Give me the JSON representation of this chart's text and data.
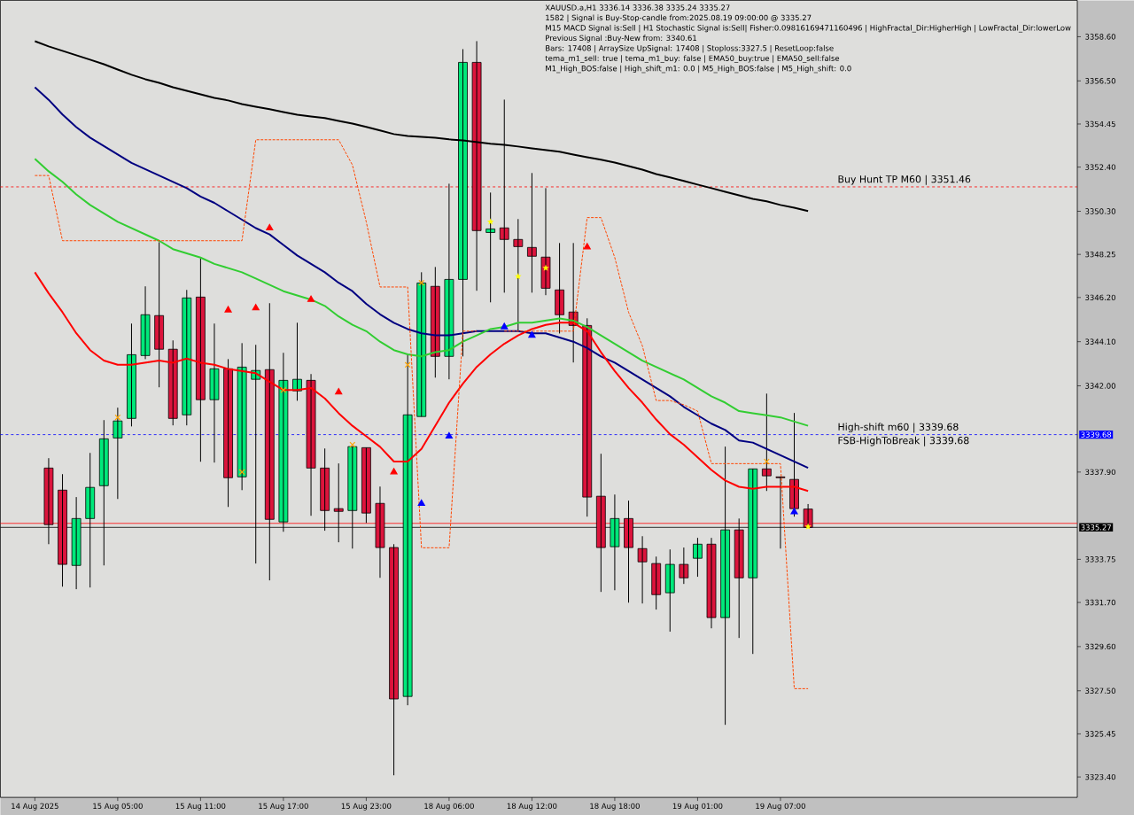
{
  "chart_data": {
    "type": "candlestick",
    "title": "XAUUSD.a,H1  3336.14 3336.38 3335.24 3335.27",
    "annotations": [
      "1582 | Signal is Buy-Stop-candle from:2025.08.19 09:00:00 @ 3335.27",
      "M15 MACD Signal is:Sell | H1 Stochastic Signal is:Sell| Fisher:0.09816169471160496 | HighFractal_Dir:HigherHigh | LowFractal_Dir:lowerLow",
      "Previous Signal :Buy-New from: 3340.61",
      "Bars: 17408 | ArraySize UpSignal: 17408 | Stoploss:3327.5 | ResetLoop:false",
      "tema_m1_sell: true | tema_m1_buy: false | EMA50_buy:true | EMA50_sell:false",
      "M1_High_BOS:false | High_shift_m1: 0.0 | M5_High_BOS:false | M5_High_shift: 0.0",
      {
        "text": "Buy Hunt TP M60 | 3351.46",
        "y": 3351.46
      },
      {
        "text": "High-shift m60 | 3339.68",
        "y": 3339.68
      },
      {
        "text": "FSB-HighToBreak | 3339.68",
        "y": 3339.68
      }
    ],
    "categories": [
      "14 Aug 2025",
      null,
      null,
      null,
      null,
      null,
      "15 Aug 05:00",
      null,
      null,
      null,
      null,
      null,
      "15 Aug 11:00",
      null,
      null,
      null,
      null,
      null,
      "15 Aug 17:00",
      null,
      null,
      null,
      null,
      null,
      "15 Aug 23:00",
      null,
      null,
      null,
      null,
      null,
      "18 Aug 06:00",
      null,
      null,
      null,
      null,
      null,
      "18 Aug 12:00",
      null,
      null,
      null,
      null,
      null,
      "18 Aug 18:00",
      null,
      null,
      null,
      null,
      null,
      "19 Aug 01:00",
      null,
      null,
      null,
      null,
      null,
      "19 Aug 07:00",
      null,
      null
    ],
    "ohlc": [
      null,
      [
        3338.09,
        3338.56,
        3334.47,
        3335.4
      ],
      [
        3337.04,
        3337.8,
        3332.45,
        3333.51
      ],
      [
        3333.46,
        3336.71,
        3332.33,
        3335.69
      ],
      [
        3335.69,
        3338.81,
        3332.41,
        3337.17
      ],
      [
        3337.25,
        3340.37,
        3333.46,
        3339.48
      ],
      [
        3339.52,
        3340.96,
        3336.62,
        3340.33
      ],
      [
        3340.45,
        3344.96,
        3340.07,
        3343.48
      ],
      [
        3343.44,
        3346.73,
        3343.27,
        3345.38
      ],
      [
        3345.34,
        3348.83,
        3341.93,
        3343.74
      ],
      [
        3343.74,
        3344.16,
        3340.12,
        3340.45
      ],
      [
        3340.62,
        3346.56,
        3340.12,
        3346.18
      ],
      [
        3346.22,
        3348.07,
        3338.39,
        3341.34
      ],
      [
        3341.34,
        3344.96,
        3338.35,
        3342.81
      ],
      [
        3342.81,
        3343.27,
        3336.24,
        3337.63
      ],
      [
        3337.67,
        3344.03,
        3337.04,
        3342.89
      ],
      [
        3342.31,
        3343.95,
        3333.55,
        3342.73
      ],
      [
        3342.77,
        3345.93,
        3332.75,
        3335.65
      ],
      [
        3335.53,
        3343.57,
        3335.06,
        3342.26
      ],
      [
        3341.76,
        3345.0,
        3341.29,
        3342.31
      ],
      [
        3342.26,
        3342.56,
        3335.82,
        3338.09
      ],
      [
        3338.09,
        3339.02,
        3335.11,
        3336.07
      ],
      [
        3336.16,
        3338.31,
        3334.56,
        3336.03
      ],
      [
        3336.07,
        3339.11,
        3334.26,
        3339.11
      ],
      [
        3339.06,
        3339.06,
        3335.48,
        3335.95
      ],
      [
        3336.41,
        3337.21,
        3332.87,
        3334.31
      ],
      [
        3334.31,
        3334.47,
        3323.48,
        3327.11
      ],
      [
        3327.23,
        3343.48,
        3326.81,
        3340.62
      ],
      [
        3340.54,
        3347.4,
        3340.54,
        3346.89
      ],
      [
        3346.73,
        3347.65,
        3342.39,
        3343.4
      ],
      [
        3343.4,
        3351.61,
        3342.31,
        3347.06
      ],
      [
        3347.06,
        3358.01,
        3343.4,
        3357.38
      ],
      [
        3357.38,
        3358.39,
        3346.52,
        3349.38
      ],
      [
        3349.29,
        3351.19,
        3345.97,
        3349.46
      ],
      [
        3349.51,
        3355.61,
        3346.43,
        3348.96
      ],
      [
        3348.96,
        3349.93,
        3344.62,
        3348.62
      ],
      [
        3348.58,
        3352.12,
        3346.43,
        3348.16
      ],
      [
        3348.12,
        3351.4,
        3346.31,
        3346.64
      ],
      [
        3346.56,
        3348.79,
        3344.49,
        3345.38
      ],
      [
        3345.51,
        3348.79,
        3343.11,
        3344.87
      ],
      [
        3344.87,
        3345.21,
        3335.78,
        3336.71
      ],
      [
        3336.75,
        3338.77,
        3332.2,
        3334.31
      ],
      [
        3334.35,
        3336.83,
        3332.28,
        3335.69
      ],
      [
        3335.69,
        3336.54,
        3331.69,
        3334.31
      ],
      [
        3334.26,
        3334.85,
        3331.65,
        3333.63
      ],
      [
        3333.55,
        3333.88,
        3331.36,
        3332.07
      ],
      [
        3332.16,
        3334.22,
        3330.31,
        3333.51
      ],
      [
        3333.51,
        3334.31,
        3332.58,
        3332.87
      ],
      [
        3333.8,
        3334.77,
        3332.92,
        3334.47
      ],
      [
        3334.47,
        3334.77,
        3330.47,
        3330.98
      ],
      [
        3330.98,
        3339.11,
        3325.88,
        3335.15
      ],
      [
        3335.15,
        3335.69,
        3330.01,
        3332.87
      ],
      [
        3332.87,
        3338.05,
        3329.25,
        3338.05
      ],
      [
        3338.05,
        3341.63,
        3337.0,
        3337.72
      ],
      [
        3337.67,
        3337.67,
        3334.26,
        3337.63
      ],
      [
        3337.55,
        3340.71,
        3335.78,
        3336.16
      ],
      [
        3336.14,
        3336.38,
        3335.24,
        3335.27
      ]
    ],
    "colors": [
      null,
      "#dc143c",
      "#dc143c",
      "#00e87a",
      "#00e87a",
      "#00e87a",
      "#00e87a",
      "#00e87a",
      "#00e87a",
      "#dc143c",
      "#dc143c",
      "#00e87a",
      "#dc143c",
      "#00e87a",
      "#dc143c",
      "#00e87a",
      "#00e87a",
      "#dc143c",
      "#00e87a",
      "#00e87a",
      "#dc143c",
      "#dc143c",
      "#dc143c",
      "#00e87a",
      "#dc143c",
      "#dc143c",
      "#dc143c",
      "#00e87a",
      "#00e87a",
      "#dc143c",
      "#00e87a",
      "#00e87a",
      "#dc143c",
      "#00e87a",
      "#dc143c",
      "#dc143c",
      "#dc143c",
      "#dc143c",
      "#dc143c",
      "#dc143c",
      "#dc143c",
      "#dc143c",
      "#00e87a",
      "#dc143c",
      "#dc143c",
      "#dc143c",
      "#00e87a",
      "#dc143c",
      "#00e87a",
      "#dc143c",
      "#00e87a",
      "#dc143c",
      "#00e87a",
      "#dc143c",
      "#dc143c",
      "#dc143c",
      "#dc143c"
    ],
    "ylim": [
      3322.43,
      3360.33
    ],
    "yticks": [
      {
        "value": 3358.6,
        "label": "3358.60"
      },
      {
        "value": 3356.5,
        "label": "3356.50"
      },
      {
        "value": 3354.45,
        "label": "3354.45"
      },
      {
        "value": 3352.4,
        "label": "3352.40"
      },
      {
        "value": 3350.3,
        "label": "3350.30"
      },
      {
        "value": 3348.25,
        "label": "3348.25"
      },
      {
        "value": 3346.2,
        "label": "3346.20"
      },
      {
        "value": 3344.1,
        "label": "3344.10"
      },
      {
        "value": 3342.0,
        "label": "3342.00"
      },
      {
        "value": 3337.9,
        "label": "3337.90"
      },
      {
        "value": 3333.75,
        "label": "3333.75"
      },
      {
        "value": 3331.7,
        "label": "3331.70"
      },
      {
        "value": 3329.6,
        "label": "3329.60"
      },
      {
        "value": 3327.5,
        "label": "3327.50"
      },
      {
        "value": 3325.45,
        "label": "3325.45"
      },
      {
        "value": 3323.4,
        "label": "3323.40"
      }
    ],
    "series": [
      {
        "type": "line",
        "color": "#000000",
        "values": [
          3358.39,
          3358.14,
          3357.93,
          3357.72,
          3357.51,
          3357.29,
          3357.04,
          3356.79,
          3356.58,
          3356.41,
          3356.2,
          3356.03,
          3355.86,
          3355.69,
          3355.57,
          3355.4,
          3355.27,
          3355.15,
          3355.02,
          3354.89,
          3354.81,
          3354.73,
          3354.6,
          3354.47,
          3354.31,
          3354.14,
          3353.97,
          3353.88,
          3353.84,
          3353.8,
          3353.72,
          3353.67,
          3353.59,
          3353.51,
          3353.46,
          3353.38,
          3353.29,
          3353.21,
          3353.13,
          3353.0,
          3352.87,
          3352.75,
          3352.62,
          3352.45,
          3352.28,
          3352.07,
          3351.91,
          3351.74,
          3351.57,
          3351.4,
          3351.23,
          3351.06,
          3350.89,
          3350.77,
          3350.6,
          3350.47,
          3350.31
        ]
      },
      {
        "type": "line",
        "color": "#000080",
        "values": [
          3356.2,
          3355.6,
          3354.9,
          3354.3,
          3353.8,
          3353.4,
          3353.0,
          3352.6,
          3352.3,
          3352.0,
          3351.7,
          3351.4,
          3351.0,
          3350.7,
          3350.3,
          3349.9,
          3349.5,
          3349.2,
          3348.7,
          3348.2,
          3347.8,
          3347.4,
          3346.9,
          3346.5,
          3345.9,
          3345.4,
          3345.0,
          3344.7,
          3344.5,
          3344.4,
          3344.4,
          3344.5,
          3344.6,
          3344.6,
          3344.6,
          3344.6,
          3344.5,
          3344.5,
          3344.3,
          3344.1,
          3343.8,
          3343.4,
          3343.1,
          3342.7,
          3342.3,
          3341.9,
          3341.5,
          3341.0,
          3340.6,
          3340.2,
          3339.9,
          3339.4,
          3339.3,
          3339.0,
          3338.7,
          3338.4,
          3338.1
        ]
      },
      {
        "type": "line",
        "color": "#32cd32",
        "values": [
          3352.8,
          3352.2,
          3351.7,
          3351.1,
          3350.6,
          3350.2,
          3349.8,
          3349.5,
          3349.2,
          3348.9,
          3348.5,
          3348.3,
          3348.1,
          3347.8,
          3347.6,
          3347.4,
          3347.1,
          3346.8,
          3346.5,
          3346.3,
          3346.1,
          3345.8,
          3345.3,
          3344.9,
          3344.6,
          3344.1,
          3343.7,
          3343.5,
          3343.4,
          3343.6,
          3343.7,
          3344.1,
          3344.4,
          3344.7,
          3344.8,
          3345.0,
          3345.0,
          3345.1,
          3345.2,
          3345.1,
          3344.8,
          3344.4,
          3344.0,
          3343.6,
          3343.2,
          3342.9,
          3342.6,
          3342.3,
          3341.9,
          3341.5,
          3341.2,
          3340.8,
          3340.7,
          3340.6,
          3340.5,
          3340.3,
          3340.1
        ]
      },
      {
        "type": "line",
        "color": "#ff0000",
        "values": [
          3347.4,
          3346.4,
          3345.5,
          3344.5,
          3343.7,
          3343.2,
          3343.0,
          3343.0,
          3343.1,
          3343.2,
          3343.1,
          3343.3,
          3343.1,
          3343.0,
          3342.8,
          3342.7,
          3342.6,
          3342.2,
          3341.8,
          3341.8,
          3341.9,
          3341.4,
          3340.7,
          3340.1,
          3339.6,
          3339.1,
          3338.4,
          3338.4,
          3339.0,
          3340.1,
          3341.2,
          3342.1,
          3342.9,
          3343.5,
          3344.0,
          3344.4,
          3344.7,
          3344.9,
          3345.0,
          3345.0,
          3344.6,
          3343.6,
          3342.7,
          3341.9,
          3341.2,
          3340.4,
          3339.7,
          3339.2,
          3338.6,
          3338.0,
          3337.5,
          3337.2,
          3337.1,
          3337.2,
          3337.2,
          3337.2,
          3337.0
        ]
      },
      {
        "type": "line",
        "color": "#ff4500",
        "line_style": "dashed",
        "values": [
          3352.0,
          3352.0,
          3348.9,
          3348.9,
          3348.9,
          3348.9,
          3348.9,
          3348.9,
          3348.9,
          3348.9,
          3348.9,
          3348.9,
          3348.9,
          3348.9,
          3348.9,
          3348.9,
          3353.7,
          3353.7,
          3353.7,
          3353.7,
          3353.7,
          3353.7,
          3353.7,
          3352.5,
          3349.8,
          3346.7,
          3346.7,
          3346.7,
          3334.3,
          3334.3,
          3334.3,
          3344.6,
          3344.6,
          null,
          3344.6,
          3344.6,
          3344.6,
          3344.6,
          3344.6,
          3344.6,
          3350.0,
          3350.0,
          3348.1,
          3345.5,
          3343.9,
          3341.3,
          3341.3,
          3341.1,
          3340.8,
          3338.3,
          3338.3,
          3338.3,
          3338.3,
          3338.3,
          3338.3,
          3327.6,
          3327.6
        ]
      },
      {
        "type": "scatter",
        "color": "#ff0000",
        "marker": "triangle",
        "values": [
          null,
          null,
          null,
          null,
          null,
          null,
          null,
          null,
          null,
          null,
          null,
          null,
          null,
          null,
          3345.6,
          null,
          3345.7,
          3349.5,
          null,
          null,
          3346.1,
          null,
          3341.7,
          null,
          null,
          null,
          3337.9,
          null,
          null,
          null,
          null,
          null,
          null,
          null,
          null,
          null,
          null,
          null,
          null,
          null,
          3348.6,
          null,
          null,
          null,
          null,
          null,
          null,
          null,
          null,
          null,
          null,
          null,
          null,
          null,
          null,
          null,
          null
        ]
      },
      {
        "type": "scatter",
        "color": "#0000ff",
        "marker": "triangle",
        "values": [
          null,
          null,
          null,
          null,
          null,
          null,
          null,
          null,
          null,
          null,
          null,
          null,
          null,
          null,
          null,
          null,
          null,
          null,
          null,
          null,
          null,
          null,
          null,
          null,
          null,
          null,
          null,
          null,
          3336.4,
          null,
          3339.6,
          null,
          null,
          null,
          3344.8,
          null,
          3344.4,
          null,
          null,
          null,
          null,
          null,
          null,
          null,
          null,
          null,
          null,
          null,
          null,
          null,
          null,
          null,
          null,
          null,
          null,
          3336.0,
          null
        ]
      },
      {
        "type": "scatter",
        "color": "#ffa500",
        "marker": "cross",
        "values": [
          null,
          null,
          null,
          null,
          null,
          null,
          3340.5,
          null,
          null,
          null,
          null,
          null,
          null,
          null,
          null,
          3337.9,
          null,
          null,
          3341.8,
          null,
          null,
          null,
          null,
          3339.2,
          null,
          null,
          null,
          3343.0,
          3346.9,
          null,
          null,
          null,
          null,
          null,
          null,
          null,
          null,
          null,
          null,
          null,
          null,
          null,
          null,
          null,
          null,
          null,
          null,
          null,
          null,
          null,
          null,
          null,
          null,
          3338.4,
          null,
          null,
          null
        ]
      },
      {
        "type": "scatter",
        "color": "#ffff00",
        "marker": "star",
        "values": [
          null,
          null,
          null,
          null,
          null,
          null,
          null,
          null,
          null,
          null,
          null,
          null,
          null,
          null,
          null,
          null,
          null,
          null,
          null,
          null,
          null,
          null,
          null,
          null,
          null,
          null,
          null,
          null,
          null,
          null,
          null,
          null,
          null,
          3349.8,
          null,
          3347.2,
          null,
          3347.6,
          null,
          null,
          null,
          null,
          null,
          null,
          null,
          null,
          null,
          null,
          null,
          null,
          null,
          null,
          null,
          null,
          null,
          null,
          3335.3
        ]
      }
    ],
    "ref_lines": [
      {
        "axis": "y",
        "value": 3351.46,
        "color": "#ff0000",
        "line_style": "dashed"
      },
      {
        "axis": "y",
        "value": 3339.68,
        "label": "3339.68",
        "color": "#0000ff",
        "line_style": "dashed"
      },
      {
        "axis": "y",
        "value": 3335.46,
        "color": "#ff0000",
        "line_style": "solid"
      },
      {
        "axis": "y",
        "value": 3335.27,
        "label": "3335.27",
        "color": "#000000",
        "line_style": "solid"
      }
    ]
  }
}
